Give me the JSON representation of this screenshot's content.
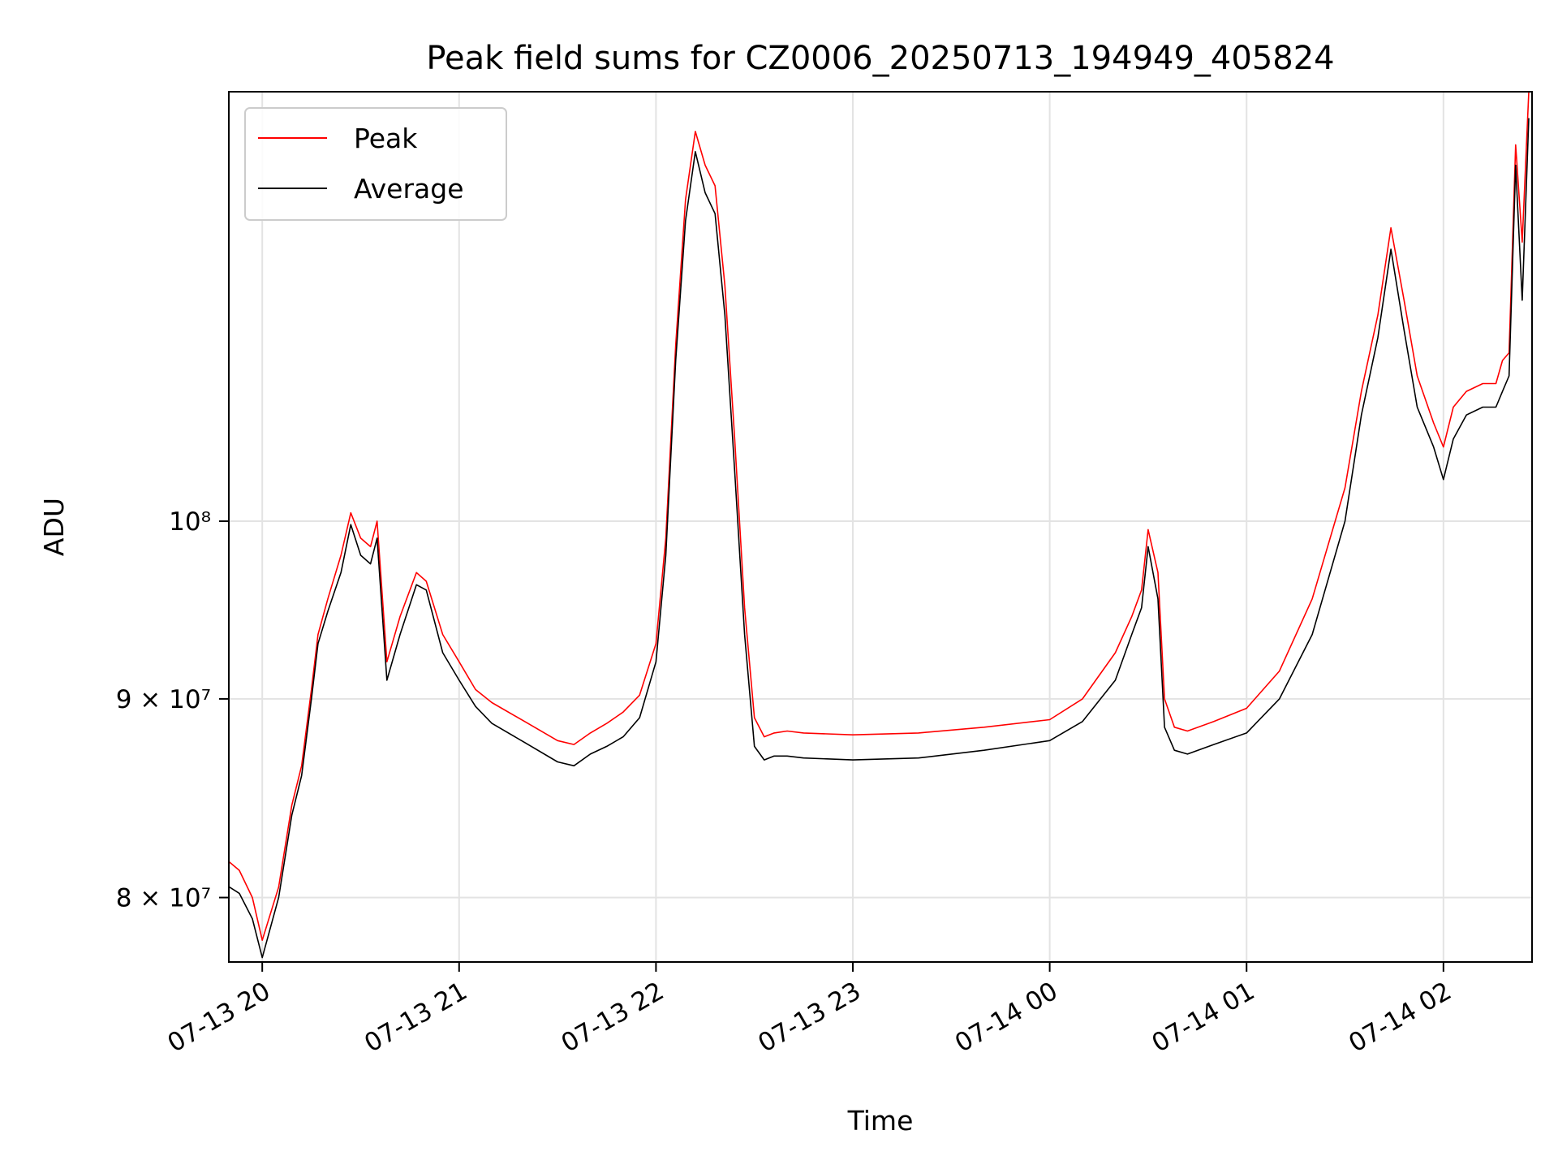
{
  "chart_data": {
    "type": "line",
    "title": "Peak field sums for CZ0006_20250713_194949_405824",
    "xlabel": "Time",
    "ylabel": "ADU",
    "yscale": "log",
    "ylim": [
      77000000,
      129000000
    ],
    "xlim": [
      "2025-07-13 19:49:49",
      "2025-07-14 02:27:00"
    ],
    "grid": true,
    "legend_position": "top-left",
    "x_ticks": [
      {
        "t": "2025-07-13 20:00",
        "label": "07-13 20"
      },
      {
        "t": "2025-07-13 21:00",
        "label": "07-13 21"
      },
      {
        "t": "2025-07-13 22:00",
        "label": "07-13 22"
      },
      {
        "t": "2025-07-13 23:00",
        "label": "07-13 23"
      },
      {
        "t": "2025-07-14 00:00",
        "label": "07-14 00"
      },
      {
        "t": "2025-07-14 01:00",
        "label": "07-14 01"
      },
      {
        "t": "2025-07-14 02:00",
        "label": "07-14 02"
      }
    ],
    "y_ticks": [
      {
        "value": 80000000,
        "label": "8 × 10⁷"
      },
      {
        "value": 90000000,
        "label": "9 × 10⁷"
      },
      {
        "value": 100000000,
        "label": "10⁸"
      }
    ],
    "series": [
      {
        "name": "Peak",
        "color": "#ff0000",
        "x": [
          "2025-07-13 19:50",
          "2025-07-13 19:53",
          "2025-07-13 19:57",
          "2025-07-13 20:00",
          "2025-07-13 20:05",
          "2025-07-13 20:09",
          "2025-07-13 20:12",
          "2025-07-13 20:15",
          "2025-07-13 20:17",
          "2025-07-13 20:20",
          "2025-07-13 20:24",
          "2025-07-13 20:27",
          "2025-07-13 20:30",
          "2025-07-13 20:33",
          "2025-07-13 20:35",
          "2025-07-13 20:38",
          "2025-07-13 20:42",
          "2025-07-13 20:47",
          "2025-07-13 20:50",
          "2025-07-13 20:55",
          "2025-07-13 21:00",
          "2025-07-13 21:05",
          "2025-07-13 21:10",
          "2025-07-13 21:20",
          "2025-07-13 21:30",
          "2025-07-13 21:35",
          "2025-07-13 21:40",
          "2025-07-13 21:45",
          "2025-07-13 21:50",
          "2025-07-13 21:55",
          "2025-07-13 22:00",
          "2025-07-13 22:03",
          "2025-07-13 22:06",
          "2025-07-13 22:09",
          "2025-07-13 22:12",
          "2025-07-13 22:15",
          "2025-07-13 22:18",
          "2025-07-13 22:21",
          "2025-07-13 22:24",
          "2025-07-13 22:27",
          "2025-07-13 22:30",
          "2025-07-13 22:33",
          "2025-07-13 22:36",
          "2025-07-13 22:40",
          "2025-07-13 22:45",
          "2025-07-13 23:00",
          "2025-07-13 23:20",
          "2025-07-13 23:40",
          "2025-07-14 00:00",
          "2025-07-14 00:10",
          "2025-07-14 00:20",
          "2025-07-14 00:25",
          "2025-07-14 00:28",
          "2025-07-14 00:30",
          "2025-07-14 00:33",
          "2025-07-14 00:35",
          "2025-07-14 00:38",
          "2025-07-14 00:42",
          "2025-07-14 00:50",
          "2025-07-14 01:00",
          "2025-07-14 01:10",
          "2025-07-14 01:20",
          "2025-07-14 01:30",
          "2025-07-14 01:35",
          "2025-07-14 01:40",
          "2025-07-14 01:44",
          "2025-07-14 01:48",
          "2025-07-14 01:52",
          "2025-07-14 01:57",
          "2025-07-14 02:00",
          "2025-07-14 02:03",
          "2025-07-14 02:07",
          "2025-07-14 02:12",
          "2025-07-14 02:16",
          "2025-07-14 02:18",
          "2025-07-14 02:20",
          "2025-07-14 02:22",
          "2025-07-14 02:24",
          "2025-07-14 02:26"
        ],
        "values": [
          81700000,
          81300000,
          80000000,
          78000000,
          80500000,
          84500000,
          86500000,
          90500000,
          93500000,
          95500000,
          98000000,
          100500000,
          99000000,
          98500000,
          100000000,
          92000000,
          94500000,
          97000000,
          96500000,
          93500000,
          92000000,
          90500000,
          89800000,
          88800000,
          87800000,
          87600000,
          88200000,
          88700000,
          89300000,
          90200000,
          93000000,
          99000000,
          111000000,
          121000000,
          126000000,
          123500000,
          122000000,
          115000000,
          105000000,
          95000000,
          89000000,
          88000000,
          88200000,
          88300000,
          88200000,
          88100000,
          88200000,
          88500000,
          88900000,
          90000000,
          92500000,
          94500000,
          96000000,
          99500000,
          97000000,
          90000000,
          88500000,
          88300000,
          88800000,
          89500000,
          91500000,
          95500000,
          102000000,
          108000000,
          113000000,
          119000000,
          114000000,
          109000000,
          106000000,
          104500000,
          107000000,
          108000000,
          108500000,
          108500000,
          110000000,
          110500000,
          125000000,
          118000000,
          129000000
        ]
      },
      {
        "name": "Average",
        "color": "#000000",
        "x": [
          "2025-07-13 19:50",
          "2025-07-13 19:53",
          "2025-07-13 19:57",
          "2025-07-13 20:00",
          "2025-07-13 20:05",
          "2025-07-13 20:09",
          "2025-07-13 20:12",
          "2025-07-13 20:15",
          "2025-07-13 20:17",
          "2025-07-13 20:20",
          "2025-07-13 20:24",
          "2025-07-13 20:27",
          "2025-07-13 20:30",
          "2025-07-13 20:33",
          "2025-07-13 20:35",
          "2025-07-13 20:38",
          "2025-07-13 20:42",
          "2025-07-13 20:47",
          "2025-07-13 20:50",
          "2025-07-13 20:55",
          "2025-07-13 21:00",
          "2025-07-13 21:05",
          "2025-07-13 21:10",
          "2025-07-13 21:20",
          "2025-07-13 21:30",
          "2025-07-13 21:35",
          "2025-07-13 21:40",
          "2025-07-13 21:45",
          "2025-07-13 21:50",
          "2025-07-13 21:55",
          "2025-07-13 22:00",
          "2025-07-13 22:03",
          "2025-07-13 22:06",
          "2025-07-13 22:09",
          "2025-07-13 22:12",
          "2025-07-13 22:15",
          "2025-07-13 22:18",
          "2025-07-13 22:21",
          "2025-07-13 22:24",
          "2025-07-13 22:27",
          "2025-07-13 22:30",
          "2025-07-13 22:33",
          "2025-07-13 22:36",
          "2025-07-13 22:40",
          "2025-07-13 22:45",
          "2025-07-13 23:00",
          "2025-07-13 23:20",
          "2025-07-13 23:40",
          "2025-07-14 00:00",
          "2025-07-14 00:10",
          "2025-07-14 00:20",
          "2025-07-14 00:25",
          "2025-07-14 00:28",
          "2025-07-14 00:30",
          "2025-07-14 00:33",
          "2025-07-14 00:35",
          "2025-07-14 00:38",
          "2025-07-14 00:42",
          "2025-07-14 00:50",
          "2025-07-14 01:00",
          "2025-07-14 01:10",
          "2025-07-14 01:20",
          "2025-07-14 01:30",
          "2025-07-14 01:35",
          "2025-07-14 01:40",
          "2025-07-14 01:44",
          "2025-07-14 01:48",
          "2025-07-14 01:52",
          "2025-07-14 01:57",
          "2025-07-14 02:00",
          "2025-07-14 02:03",
          "2025-07-14 02:07",
          "2025-07-14 02:12",
          "2025-07-14 02:16",
          "2025-07-14 02:18",
          "2025-07-14 02:20",
          "2025-07-14 02:22",
          "2025-07-14 02:24",
          "2025-07-14 02:26"
        ],
        "values": [
          80500000,
          80200000,
          79000000,
          77200000,
          80000000,
          84000000,
          86000000,
          90000000,
          93000000,
          94800000,
          97000000,
          99800000,
          98000000,
          97500000,
          99000000,
          91000000,
          93500000,
          96300000,
          96000000,
          92500000,
          91000000,
          89600000,
          88700000,
          87700000,
          86700000,
          86500000,
          87100000,
          87500000,
          88000000,
          89000000,
          92000000,
          98000000,
          110000000,
          119500000,
          124500000,
          121500000,
          120000000,
          113000000,
          103000000,
          93500000,
          87500000,
          86800000,
          87000000,
          87000000,
          86900000,
          86800000,
          86900000,
          87300000,
          87800000,
          88800000,
          91000000,
          93500000,
          95000000,
          98500000,
          95500000,
          88500000,
          87300000,
          87100000,
          87600000,
          88200000,
          90000000,
          93500000,
          100000000,
          106500000,
          111500000,
          117500000,
          112000000,
          107000000,
          104500000,
          102500000,
          105000000,
          106500000,
          107000000,
          107000000,
          108000000,
          109000000,
          123500000,
          114000000,
          127000000
        ]
      }
    ]
  }
}
